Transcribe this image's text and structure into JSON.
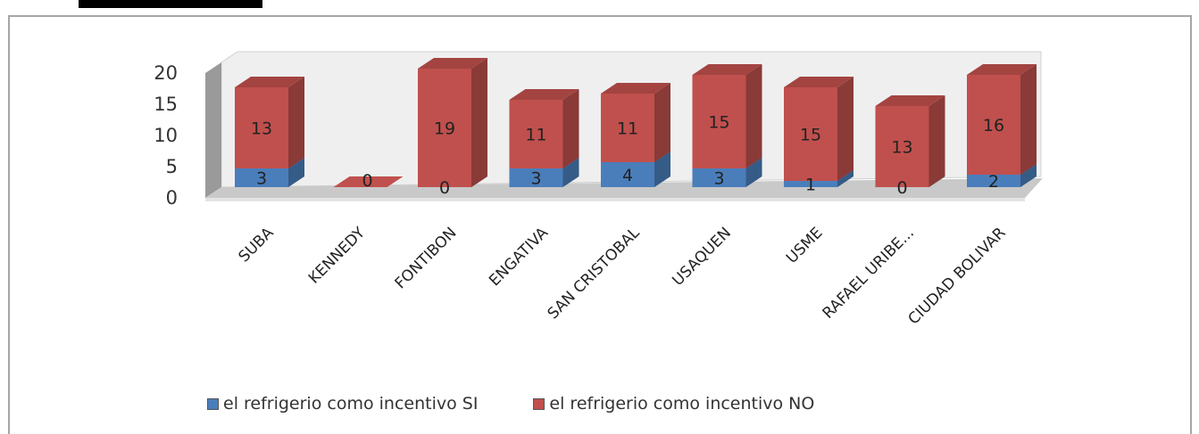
{
  "chart_data": {
    "type": "bar",
    "stacked": true,
    "three_d": true,
    "categories": [
      "SUBA",
      "KENNEDY",
      "FONTIBON",
      "ENGATIVA",
      "SAN CRISTOBAL",
      "USAQUEN",
      "USME",
      "RAFAEL URIBE...",
      "CIUDAD BOLIVAR"
    ],
    "series": [
      {
        "name": "el refrigerio como incentivo SI",
        "values": [
          3,
          0,
          0,
          3,
          4,
          3,
          1,
          0,
          2
        ],
        "color": "#4a7ebb"
      },
      {
        "name": "el refrigerio como incentivo NO",
        "values": [
          13,
          0,
          19,
          11,
          11,
          15,
          15,
          13,
          16
        ],
        "color": "#c0504d"
      }
    ],
    "yticks": [
      "0",
      "5",
      "10",
      "15",
      "20"
    ],
    "ylim": [
      0,
      20
    ],
    "grid": false,
    "legend": "bottom"
  }
}
